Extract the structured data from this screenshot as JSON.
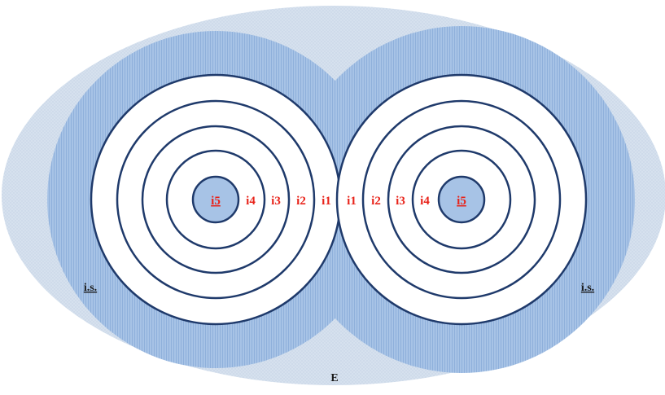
{
  "colors": {
    "outer_ellipse": "#d6e1ee",
    "outer_stipple": "#c3d2e4",
    "disk_fill": "#a7c3e6",
    "disk_stripe": "#8fb0db",
    "ring_stroke": "#1f3a6b",
    "ring_fill": "#ffffff",
    "core_fill": "#a7c3e6",
    "ring_label": "#e8231a",
    "text_dark": "#1a1a1a"
  },
  "diagram": {
    "universe_label": "E",
    "set_label_left": "i.s.",
    "set_label_right": "i.s.",
    "left_target": {
      "core_label": "i5",
      "ring_labels": [
        "i4",
        "i3",
        "i2",
        "i1"
      ]
    },
    "right_target": {
      "core_label": "i5",
      "ring_labels": [
        "i1",
        "i2",
        "i3",
        "i4"
      ]
    }
  }
}
